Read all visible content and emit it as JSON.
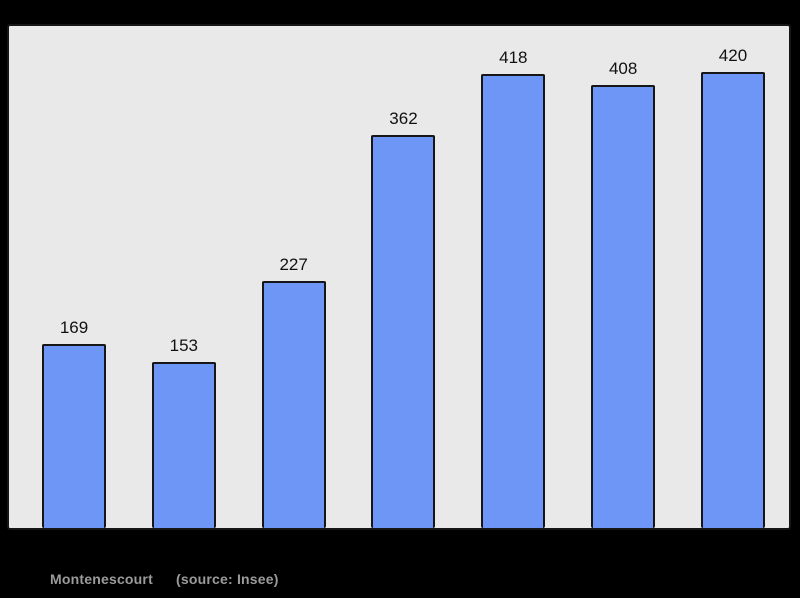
{
  "caption": {
    "commune": "Montenescourt",
    "source": "(source: Insee)"
  },
  "chart_data": {
    "type": "bar",
    "title": "",
    "xlabel": "",
    "ylabel": "",
    "values": [
      169,
      153,
      227,
      362,
      418,
      408,
      420
    ],
    "value_labels": [
      "169",
      "153",
      "227",
      "362",
      "418",
      "408",
      "420"
    ],
    "ylim": [
      0,
      462
    ],
    "grid": false,
    "legend": false,
    "axes_visible": false,
    "colors": {
      "bar_fill": "#6e96f7",
      "bar_border": "#161616",
      "panel_background": "#e9e9e9",
      "panel_border": "#161616",
      "page_background": "#000000",
      "value_label": "#111111",
      "caption_text": "#9b9b9b"
    }
  }
}
